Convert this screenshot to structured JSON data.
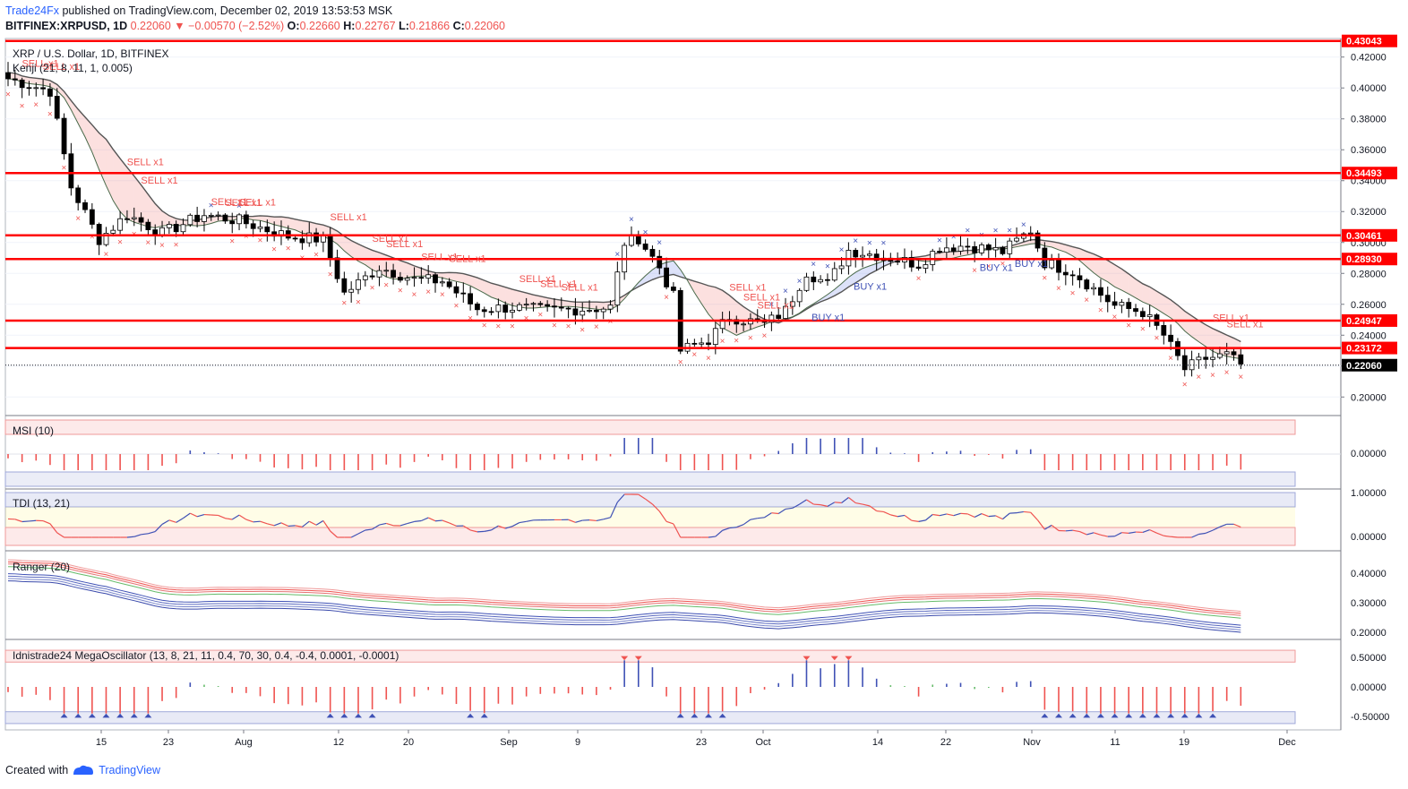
{
  "header": {
    "publisher": "Trade24Fx",
    "published_text": "published on TradingView.com, December 02, 2019 13:53:53 MSK",
    "symbol": "BITFINEX:XRPUSD, 1D",
    "last": "0.22060",
    "change": "−0.00570 (−2.52%)",
    "o_label": "O:",
    "o": "0.22660",
    "h_label": "H:",
    "h": "0.22767",
    "l_label": "L:",
    "l": "0.21866",
    "c_label": "C:",
    "c": "0.22060"
  },
  "footer": {
    "created_with": "Created with",
    "brand": "TradingView"
  },
  "colors": {
    "level_line": "#ff0000",
    "bull": "#ffffff",
    "bear": "#000000",
    "sell": "#ef5350",
    "buy": "#3f51b5",
    "grid": "#e0e3eb"
  },
  "chart_data": {
    "type": "candlestick",
    "title": "XRP / U.S. Dollar, 1D, BITFINEX",
    "indicator_label": "Kenji (21, 8, 11, 1, 0.005)",
    "price_axis": {
      "range": [
        0.188,
        0.432
      ],
      "ticks": [
        "0.42000",
        "0.40000",
        "0.38000",
        "0.36000",
        "0.34000",
        "0.32000",
        "0.30000",
        "0.28000",
        "0.26000",
        "0.24000",
        "0.22000",
        "0.20000"
      ]
    },
    "x_axis": {
      "ticks": [
        "15",
        "23",
        "Aug",
        "12",
        "20",
        "Sep",
        "9",
        "23",
        "Oct",
        "14",
        "22",
        "Nov",
        "11",
        "19",
        "Dec"
      ]
    },
    "horizontal_levels": [
      {
        "value": 0.43043,
        "label": "0.43043"
      },
      {
        "value": 0.34493,
        "label": "0.34493"
      },
      {
        "value": 0.30461,
        "label": "0.30461"
      },
      {
        "value": 0.2893,
        "label": "0.28930"
      },
      {
        "value": 0.24947,
        "label": "0.24947"
      },
      {
        "value": 0.23172,
        "label": "0.23172"
      }
    ],
    "current_price": {
      "value": 0.2206,
      "label": "0.22060"
    },
    "anchors": [
      {
        "d": 0,
        "p": 0.406
      },
      {
        "d": 6,
        "p": 0.398
      },
      {
        "d": 9,
        "p": 0.336
      },
      {
        "d": 13,
        "p": 0.302
      },
      {
        "d": 17,
        "p": 0.318
      },
      {
        "d": 22,
        "p": 0.306
      },
      {
        "d": 28,
        "p": 0.318
      },
      {
        "d": 33,
        "p": 0.314
      },
      {
        "d": 40,
        "p": 0.304
      },
      {
        "d": 45,
        "p": 0.302
      },
      {
        "d": 48,
        "p": 0.267
      },
      {
        "d": 53,
        "p": 0.284
      },
      {
        "d": 58,
        "p": 0.276
      },
      {
        "d": 62,
        "p": 0.275
      },
      {
        "d": 67,
        "p": 0.257
      },
      {
        "d": 72,
        "p": 0.258
      },
      {
        "d": 77,
        "p": 0.256
      },
      {
        "d": 82,
        "p": 0.257
      },
      {
        "d": 86,
        "p": 0.258
      },
      {
        "d": 88,
        "p": 0.3
      },
      {
        "d": 90,
        "p": 0.303
      },
      {
        "d": 93,
        "p": 0.284
      },
      {
        "d": 95,
        "p": 0.265
      },
      {
        "d": 96,
        "p": 0.23
      },
      {
        "d": 100,
        "p": 0.237
      },
      {
        "d": 103,
        "p": 0.252
      },
      {
        "d": 108,
        "p": 0.247
      },
      {
        "d": 111,
        "p": 0.256
      },
      {
        "d": 114,
        "p": 0.281
      },
      {
        "d": 117,
        "p": 0.273
      },
      {
        "d": 120,
        "p": 0.295
      },
      {
        "d": 125,
        "p": 0.291
      },
      {
        "d": 130,
        "p": 0.286
      },
      {
        "d": 133,
        "p": 0.297
      },
      {
        "d": 137,
        "p": 0.298
      },
      {
        "d": 142,
        "p": 0.294
      },
      {
        "d": 146,
        "p": 0.308
      },
      {
        "d": 148,
        "p": 0.287
      },
      {
        "d": 152,
        "p": 0.281
      },
      {
        "d": 158,
        "p": 0.259
      },
      {
        "d": 162,
        "p": 0.255
      },
      {
        "d": 165,
        "p": 0.24
      },
      {
        "d": 168,
        "p": 0.218
      },
      {
        "d": 171,
        "p": 0.225
      },
      {
        "d": 174,
        "p": 0.227
      },
      {
        "d": 176,
        "p": 0.221
      }
    ],
    "sell_labels": [
      {
        "d": 3,
        "text": "SELL x1"
      },
      {
        "d": 6,
        "text": "SELL x1"
      },
      {
        "d": 18,
        "text": "SELL x1"
      },
      {
        "d": 20,
        "text": "SELL x1"
      },
      {
        "d": 30,
        "text": "SELL x1"
      },
      {
        "d": 32,
        "text": "SELL x1"
      },
      {
        "d": 34,
        "text": "SELL x1"
      },
      {
        "d": 47,
        "text": "SELL x1"
      },
      {
        "d": 53,
        "text": "SELL x1"
      },
      {
        "d": 55,
        "text": "SELL x1"
      },
      {
        "d": 60,
        "text": "SELL x1"
      },
      {
        "d": 64,
        "text": "SELL x1"
      },
      {
        "d": 74,
        "text": "SELL x1"
      },
      {
        "d": 77,
        "text": "SELL x1"
      },
      {
        "d": 80,
        "text": "SELL x1"
      },
      {
        "d": 104,
        "text": "SELL x1"
      },
      {
        "d": 106,
        "text": "SELL x1"
      },
      {
        "d": 108,
        "text": "SELL x1"
      },
      {
        "d": 173,
        "text": "SELL x1"
      },
      {
        "d": 175,
        "text": "SELL x1"
      }
    ],
    "buy_labels": [
      {
        "d": 116,
        "text": "BUY x1"
      },
      {
        "d": 122,
        "text": "BUY x1"
      },
      {
        "d": 140,
        "text": "BUY x1"
      },
      {
        "d": 145,
        "text": "BUY x1"
      }
    ],
    "msi": {
      "label": "MSI (10)",
      "ticks": [
        "0.00000"
      ]
    },
    "tdi": {
      "label": "TDI (13, 21)",
      "ticks": [
        "1.00000",
        "0.00000"
      ]
    },
    "ranger": {
      "label": "Ranger (20)",
      "ticks": [
        "0.40000",
        "0.30000",
        "0.20000"
      ]
    },
    "mega": {
      "label": "Idnistrade24 MegaOscillator (13, 8, 21, 11, 0.4, 70, 30, 0.4, -0.4, 0.0001, -0.0001)",
      "ticks": [
        "0.50000",
        "0.00000",
        "-0.50000"
      ]
    }
  }
}
